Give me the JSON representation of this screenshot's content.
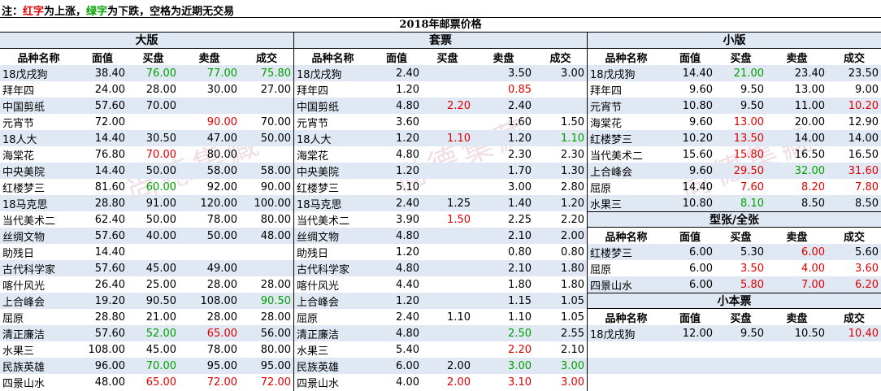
{
  "note": {
    "prefix": "注：",
    "red_word": "红字",
    "mid1": "为上涨，",
    "green_word": "绿字",
    "mid2": "为下跌，空格为近期无交易"
  },
  "title": "2018年邮票价格",
  "watermark_text": "尚德集藏",
  "columns": [
    "品种名称",
    "面值",
    "买盘",
    "卖盘",
    "成交"
  ],
  "colors": {
    "up": "#e00000",
    "down": "#00a000",
    "alt_row": "#dfe8f3"
  },
  "sections": {
    "daban": {
      "title": "大版",
      "rows": [
        {
          "name": "18戊戌狗",
          "face": "38.40",
          "buy": "76.00",
          "buy_c": "g",
          "sell": "77.00",
          "sell_c": "g",
          "deal": "75.80",
          "deal_c": "g"
        },
        {
          "name": "拜年四",
          "face": "24.00",
          "buy": "28.00",
          "sell": "30.00",
          "deal": "27.00"
        },
        {
          "name": "中国剪纸",
          "face": "57.60",
          "buy": "70.00",
          "sell": "",
          "deal": ""
        },
        {
          "name": "元宵节",
          "face": "72.00",
          "buy": "",
          "sell": "90.00",
          "sell_c": "r",
          "deal": "70.00"
        },
        {
          "name": "18人大",
          "face": "14.40",
          "buy": "30.50",
          "sell": "47.00",
          "deal": "50.00"
        },
        {
          "name": "海棠花",
          "face": "76.80",
          "buy": "70.00",
          "buy_c": "r",
          "sell": "80.00",
          "deal": ""
        },
        {
          "name": "中央美院",
          "face": "14.40",
          "buy": "50.00",
          "sell": "58.00",
          "deal": "58.00"
        },
        {
          "name": "红楼梦三",
          "face": "81.60",
          "buy": "60.00",
          "buy_c": "g",
          "sell": "92.00",
          "deal": "90.00"
        },
        {
          "name": "18马克思",
          "face": "28.80",
          "buy": "91.00",
          "sell": "120.00",
          "deal": "100.00"
        },
        {
          "name": "当代美术二",
          "face": "62.40",
          "buy": "50.00",
          "sell": "78.00",
          "deal": "80.00"
        },
        {
          "name": "丝绸文物",
          "face": "57.60",
          "buy": "40.00",
          "sell": "50.00",
          "deal": "48.00"
        },
        {
          "name": "助残日",
          "face": "14.40",
          "buy": "",
          "sell": "",
          "deal": ""
        },
        {
          "name": "古代科学家",
          "face": "57.60",
          "buy": "45.00",
          "sell": "49.00",
          "deal": ""
        },
        {
          "name": "喀什风光",
          "face": "26.40",
          "buy": "25.00",
          "sell": "28.00",
          "deal": "28.00"
        },
        {
          "name": "上合峰会",
          "face": "19.20",
          "buy": "90.50",
          "sell": "108.00",
          "deal": "90.50",
          "deal_c": "g"
        },
        {
          "name": "屈原",
          "face": "28.80",
          "buy": "21.00",
          "sell": "28.00",
          "deal": "28.00"
        },
        {
          "name": "清正廉洁",
          "face": "57.60",
          "buy": "52.00",
          "buy_c": "g",
          "sell": "65.00",
          "sell_c": "r",
          "deal": "56.00"
        },
        {
          "name": "水果三",
          "face": "108.00",
          "buy": "45.00",
          "sell": "78.00",
          "deal": "80.00"
        },
        {
          "name": "民族英雄",
          "face": "96.00",
          "buy": "70.00",
          "buy_c": "g",
          "sell": "95.00",
          "deal": "95.00"
        },
        {
          "name": "四景山水",
          "face": "48.00",
          "buy": "65.00",
          "buy_c": "r",
          "sell": "72.00",
          "sell_c": "r",
          "deal": "72.00",
          "deal_c": "r"
        }
      ]
    },
    "taopiao": {
      "title": "套票",
      "rows": [
        {
          "name": "18戊戌狗",
          "face": "2.40",
          "buy": "",
          "sell": "3.50",
          "deal": "3.00"
        },
        {
          "name": "拜年四",
          "face": "1.20",
          "buy": "",
          "sell": "0.85",
          "sell_c": "r",
          "deal": ""
        },
        {
          "name": "中国剪纸",
          "face": "4.80",
          "buy": "2.20",
          "buy_c": "r",
          "sell": "2.40",
          "deal": ""
        },
        {
          "name": "元宵节",
          "face": "3.60",
          "buy": "",
          "sell": "1.60",
          "deal": "1.50"
        },
        {
          "name": "18人大",
          "face": "1.20",
          "buy": "1.10",
          "buy_c": "r",
          "sell": "1.20",
          "deal": "1.10",
          "deal_c": "g"
        },
        {
          "name": "海棠花",
          "face": "4.80",
          "buy": "",
          "sell": "2.30",
          "deal": "2.30"
        },
        {
          "name": "中央美院",
          "face": "1.20",
          "buy": "",
          "sell": "1.70",
          "deal": "1.30"
        },
        {
          "name": "红楼梦三",
          "face": "5.10",
          "buy": "",
          "sell": "3.00",
          "deal": "2.80"
        },
        {
          "name": "18马克思",
          "face": "2.40",
          "buy": "1.25",
          "sell": "1.40",
          "deal": "1.20"
        },
        {
          "name": "当代美术二",
          "face": "3.90",
          "buy": "1.50",
          "buy_c": "r",
          "sell": "2.25",
          "deal": "2.20"
        },
        {
          "name": "丝绸文物",
          "face": "4.80",
          "buy": "",
          "sell": "2.10",
          "deal": "2.00"
        },
        {
          "name": "助残日",
          "face": "1.20",
          "buy": "",
          "sell": "0.80",
          "deal": "0.80"
        },
        {
          "name": "古代科学家",
          "face": "4.80",
          "buy": "",
          "sell": "2.10",
          "deal": "1.80"
        },
        {
          "name": "喀什风光",
          "face": "4.40",
          "buy": "",
          "sell": "1.80",
          "deal": "1.80"
        },
        {
          "name": "上合峰会",
          "face": "1.20",
          "buy": "",
          "sell": "1.15",
          "deal": "1.05"
        },
        {
          "name": "屈原",
          "face": "2.40",
          "buy": "1.10",
          "sell": "1.10",
          "deal": "1.05"
        },
        {
          "name": "清正廉洁",
          "face": "4.80",
          "buy": "",
          "sell": "2.50",
          "sell_c": "g",
          "deal": "2.55"
        },
        {
          "name": "水果三",
          "face": "5.40",
          "buy": "",
          "sell": "2.20",
          "sell_c": "r",
          "deal": "2.10"
        },
        {
          "name": "民族英雄",
          "face": "6.00",
          "buy": "2.00",
          "sell": "3.00",
          "sell_c": "g",
          "deal": "3.00",
          "deal_c": "g"
        },
        {
          "name": "四景山水",
          "face": "4.00",
          "buy": "2.00",
          "buy_c": "r",
          "sell": "3.10",
          "sell_c": "r",
          "deal": "3.00",
          "deal_c": "r"
        }
      ]
    },
    "xiaoban": {
      "title": "小版",
      "rows": [
        {
          "name": "18戊戌狗",
          "face": "14.40",
          "buy": "21.00",
          "buy_c": "g",
          "sell": "23.40",
          "deal": "23.50"
        },
        {
          "name": "拜年四",
          "face": "9.60",
          "buy": "9.50",
          "sell": "13.00",
          "deal": "9.00"
        },
        {
          "name": "元宵节",
          "face": "10.80",
          "buy": "9.50",
          "sell": "11.00",
          "deal": "10.20",
          "deal_c": "r"
        },
        {
          "name": "海棠花",
          "face": "9.60",
          "buy": "13.00",
          "buy_c": "r",
          "sell": "20.00",
          "deal": "12.90"
        },
        {
          "name": "红楼梦三",
          "face": "10.20",
          "buy": "13.50",
          "buy_c": "r",
          "sell": "14.00",
          "deal": "14.00"
        },
        {
          "name": "当代美术二",
          "face": "15.60",
          "buy": "15.80",
          "buy_c": "r",
          "sell": "16.50",
          "deal": "16.50"
        },
        {
          "name": "上合峰会",
          "face": "9.60",
          "buy": "29.50",
          "buy_c": "r",
          "sell": "32.00",
          "sell_c": "g",
          "deal": "31.60",
          "deal_c": "r"
        },
        {
          "name": "屈原",
          "face": "14.40",
          "buy": "7.60",
          "buy_c": "r",
          "sell": "8.20",
          "sell_c": "r",
          "deal": "7.80",
          "deal_c": "r"
        },
        {
          "name": "水果三",
          "face": "10.80",
          "buy": "8.10",
          "buy_c": "g",
          "sell": "8.50",
          "deal": "8.50"
        }
      ]
    },
    "xingzhang": {
      "title": "型张/全张",
      "rows": [
        {
          "name": "红楼梦三",
          "face": "6.00",
          "buy": "5.30",
          "sell": "6.00",
          "sell_c": "r",
          "deal": "5.60"
        },
        {
          "name": "屈原",
          "face": "6.00",
          "buy": "3.50",
          "buy_c": "r",
          "sell": "4.00",
          "sell_c": "r",
          "deal": "3.60",
          "deal_c": "r"
        },
        {
          "name": "四景山水",
          "face": "6.00",
          "buy": "5.80",
          "buy_c": "r",
          "sell": "7.00",
          "sell_c": "r",
          "deal": "6.20",
          "deal_c": "r"
        }
      ]
    },
    "xiaobenpiao": {
      "title": "小本票",
      "rows": [
        {
          "name": "18戊戌狗",
          "face": "12.00",
          "buy": "9.50",
          "sell": "10.50",
          "deal": "10.40",
          "deal_c": "r"
        }
      ],
      "empty_rows": 3
    }
  }
}
